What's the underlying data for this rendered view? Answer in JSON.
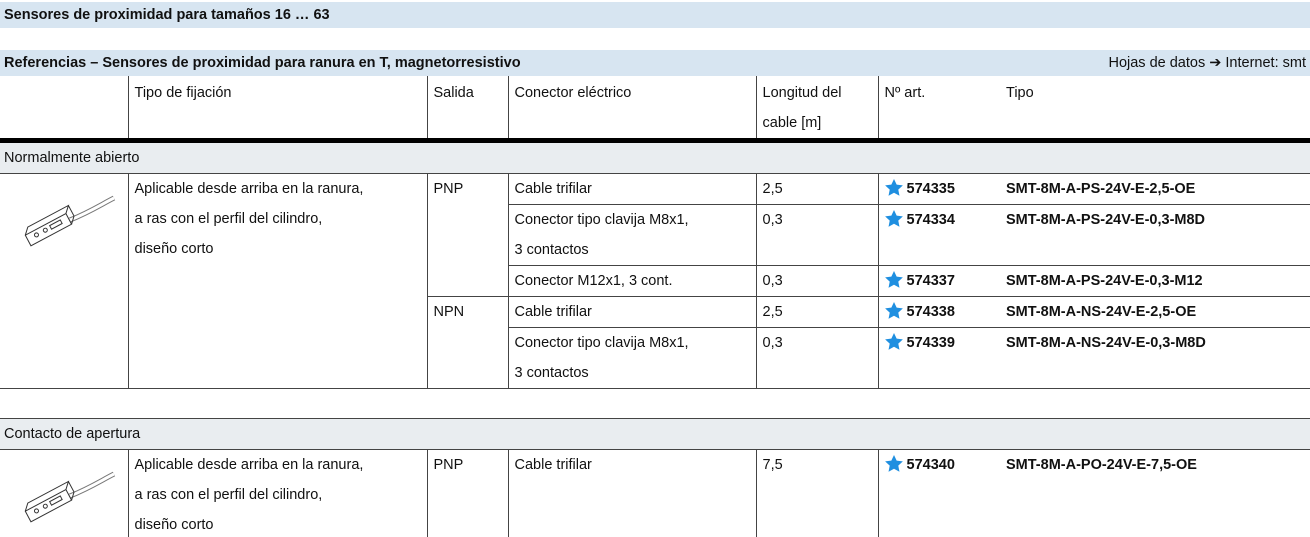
{
  "header": {
    "title": "Sensores de proximidad para tamaños 16 … 63"
  },
  "subheader": {
    "title": "Referencias – Sensores de proximidad para ranura en T, magnetorresistivo",
    "link": "Hojas de datos ➔ Internet: smt"
  },
  "table": {
    "columns": [
      "Tipo de fijación",
      "Salida",
      "Conector eléctrico",
      [
        "Longitud del",
        "cable [m]"
      ],
      "Nº art.",
      "Tipo"
    ],
    "sections": [
      {
        "name": "Normalmente abierto",
        "mounting": [
          "Aplicable desde arriba en la ranura,",
          "a ras con el perfil del cilindro,",
          "diseño corto"
        ],
        "outputs": [
          {
            "output": "PNP",
            "rows": [
              {
                "connector": [
                  "Cable trifilar"
                ],
                "length": "2,5",
                "part": "574335",
                "type": "SMT-8M-A-PS-24V-E-2,5-OE"
              },
              {
                "connector": [
                  "Conector tipo clavija M8x1,",
                  "3 contactos"
                ],
                "length": "0,3",
                "part": "574334",
                "type": "SMT-8M-A-PS-24V-E-0,3-M8D"
              },
              {
                "connector": [
                  "Conector M12x1, 3 cont."
                ],
                "length": "0,3",
                "part": "574337",
                "type": "SMT-8M-A-PS-24V-E-0,3-M12"
              }
            ]
          },
          {
            "output": "NPN",
            "rows": [
              {
                "connector": [
                  "Cable trifilar"
                ],
                "length": "2,5",
                "part": "574338",
                "type": "SMT-8M-A-NS-24V-E-2,5-OE"
              },
              {
                "connector": [
                  "Conector tipo clavija M8x1,",
                  "3 contactos"
                ],
                "length": "0,3",
                "part": "574339",
                "type": "SMT-8M-A-NS-24V-E-0,3-M8D"
              }
            ]
          }
        ]
      },
      {
        "name": "Contacto de apertura",
        "mounting": [
          "Aplicable desde arriba en la ranura,",
          "a ras con el perfil del cilindro,",
          "diseño corto"
        ],
        "outputs": [
          {
            "output": "PNP",
            "rows": [
              {
                "connector": [
                  "Cable trifilar"
                ],
                "length": "7,5",
                "part": "574340",
                "type": "SMT-8M-A-PO-24V-E-7,5-OE"
              }
            ]
          }
        ]
      }
    ]
  }
}
